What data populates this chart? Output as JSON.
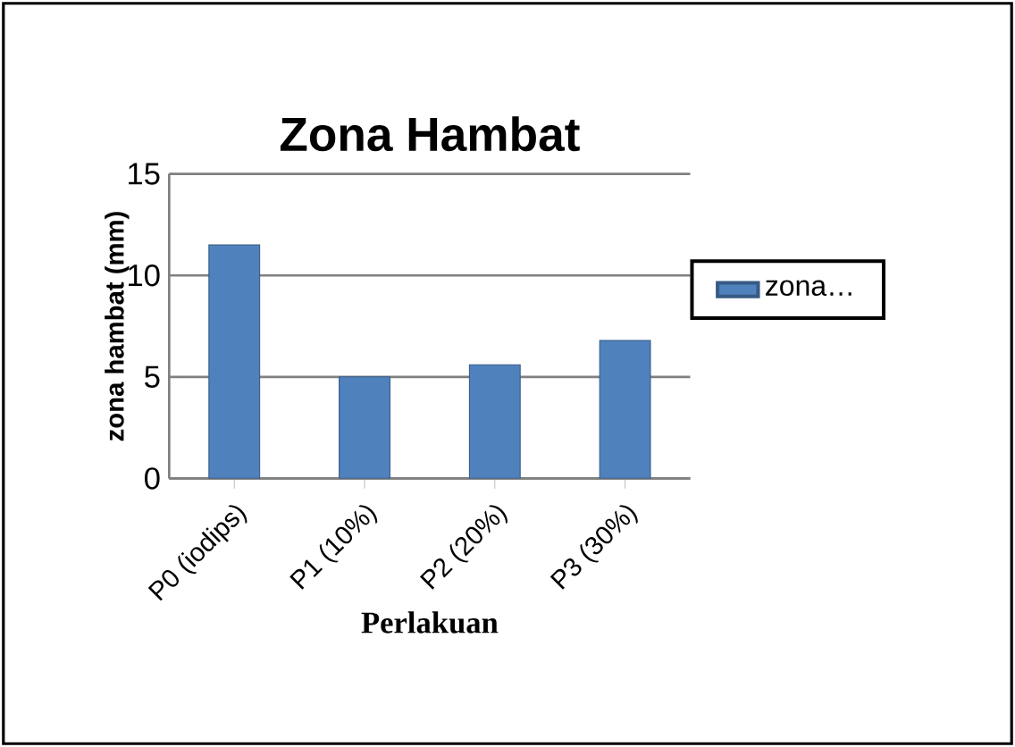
{
  "chart_data": {
    "type": "bar",
    "title": "Zona Hambat",
    "xlabel": "Perlakuan",
    "ylabel": "zona hambat (mm)",
    "categories": [
      "P0 (iodips)",
      "P1 (10%)",
      "P2 (20%)",
      "P3 (30%)"
    ],
    "series": [
      {
        "name": "zona…",
        "color": "#4f81bd",
        "values": [
          11.5,
          5.0,
          5.6,
          6.8
        ]
      }
    ],
    "ylim": [
      0,
      15
    ],
    "yticks": [
      0,
      5,
      10,
      15
    ],
    "grid": "y",
    "legend": "right"
  }
}
